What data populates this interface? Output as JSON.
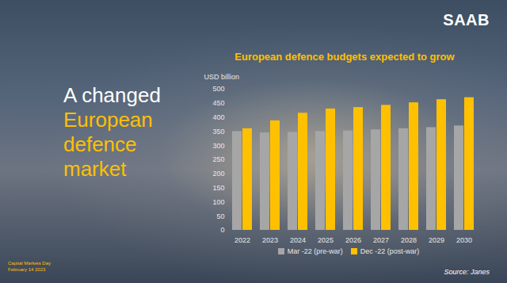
{
  "chart_data": {
    "type": "bar",
    "title": "European defence budgets expected to grow",
    "y_label": "USD billion",
    "categories": [
      "2022",
      "2023",
      "2024",
      "2025",
      "2026",
      "2027",
      "2028",
      "2029",
      "2030"
    ],
    "series": [
      {
        "name": "Mar -22 (pre-war)",
        "color": "#a6a6a6",
        "values": [
          350,
          345,
          347,
          350,
          352,
          356,
          360,
          364,
          370
        ]
      },
      {
        "name": "Dec -22 (post-war)",
        "color": "#ffc000",
        "values": [
          360,
          388,
          415,
          430,
          435,
          443,
          452,
          463,
          470
        ]
      }
    ],
    "ylim": [
      0,
      500
    ],
    "yticks": [
      0,
      50,
      100,
      150,
      200,
      250,
      300,
      350,
      400,
      450,
      500
    ],
    "grid": false,
    "legend": "bottom",
    "source": "Source: Janes"
  },
  "slide": {
    "heading_white": "A changed",
    "heading_yellow": [
      "European",
      "defence",
      "market"
    ],
    "logo": "SAAB",
    "footer": [
      "Capital Markets Day",
      "February 14 2023"
    ]
  }
}
